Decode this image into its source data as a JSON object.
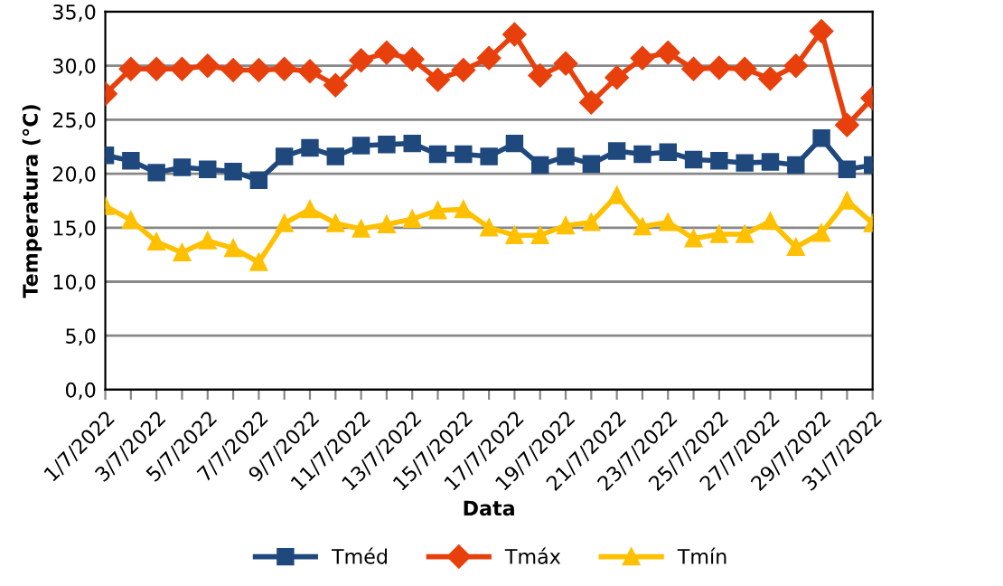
{
  "chart_data": {
    "type": "line",
    "xlabel": "Data",
    "ylabel": "Temperatura (°C)",
    "categories": [
      "1/7/2022",
      null,
      "3/7/2022",
      null,
      "5/7/2022",
      null,
      "7/7/2022",
      null,
      "9/7/2022",
      null,
      "11/7/2022",
      null,
      "13/7/2022",
      null,
      "15/7/2022",
      null,
      "17/7/2022",
      null,
      "19/7/2022",
      null,
      "21/7/2022",
      null,
      "23/7/2022",
      null,
      "25/7/2022",
      null,
      "27/7/2022",
      null,
      "29/7/2022",
      null,
      "31/7/2022"
    ],
    "series": [
      {
        "name": "Tméd",
        "color": "#1f497d",
        "marker": "square",
        "values": [
          21.7,
          21.2,
          20.1,
          20.6,
          20.4,
          20.2,
          19.4,
          21.6,
          22.4,
          21.6,
          22.6,
          22.7,
          22.8,
          21.8,
          21.8,
          21.6,
          22.8,
          20.8,
          21.6,
          20.9,
          22.1,
          21.8,
          22.0,
          21.3,
          21.2,
          21.0,
          21.1,
          20.8,
          23.3,
          20.4,
          20.8
        ]
      },
      {
        "name": "Tmáx",
        "color": "#e8400c",
        "marker": "diamond",
        "values": [
          27.4,
          29.7,
          29.7,
          29.7,
          30.0,
          29.6,
          29.6,
          29.7,
          29.5,
          28.2,
          30.5,
          31.2,
          30.6,
          28.7,
          29.6,
          30.7,
          32.9,
          29.1,
          30.2,
          26.6,
          28.9,
          30.7,
          31.2,
          29.7,
          29.8,
          29.7,
          28.8,
          30.0,
          33.2,
          24.5,
          27.0
        ]
      },
      {
        "name": "Tmín",
        "color": "#ffc000",
        "marker": "triangle",
        "values": [
          17.0,
          15.7,
          13.7,
          12.7,
          13.8,
          13.1,
          11.8,
          15.4,
          16.7,
          15.4,
          14.9,
          15.3,
          15.8,
          16.6,
          16.7,
          15.0,
          14.3,
          14.3,
          15.2,
          15.5,
          18.0,
          15.1,
          15.5,
          14.0,
          14.4,
          14.4,
          15.6,
          13.2,
          14.5,
          17.5,
          15.4
        ]
      }
    ],
    "ylim": [
      0,
      35
    ],
    "yticks": [
      {
        "value": 0,
        "label": "0,0"
      },
      {
        "value": 5,
        "label": "5,0"
      },
      {
        "value": 10,
        "label": "10,0"
      },
      {
        "value": 15,
        "label": "15,0"
      },
      {
        "value": 20,
        "label": "20,0"
      },
      {
        "value": 25,
        "label": "25,0"
      },
      {
        "value": 30,
        "label": "30,0"
      },
      {
        "value": 35,
        "label": "35,0"
      }
    ],
    "grid": "y",
    "legend": "bottom",
    "line_style": "solid"
  }
}
